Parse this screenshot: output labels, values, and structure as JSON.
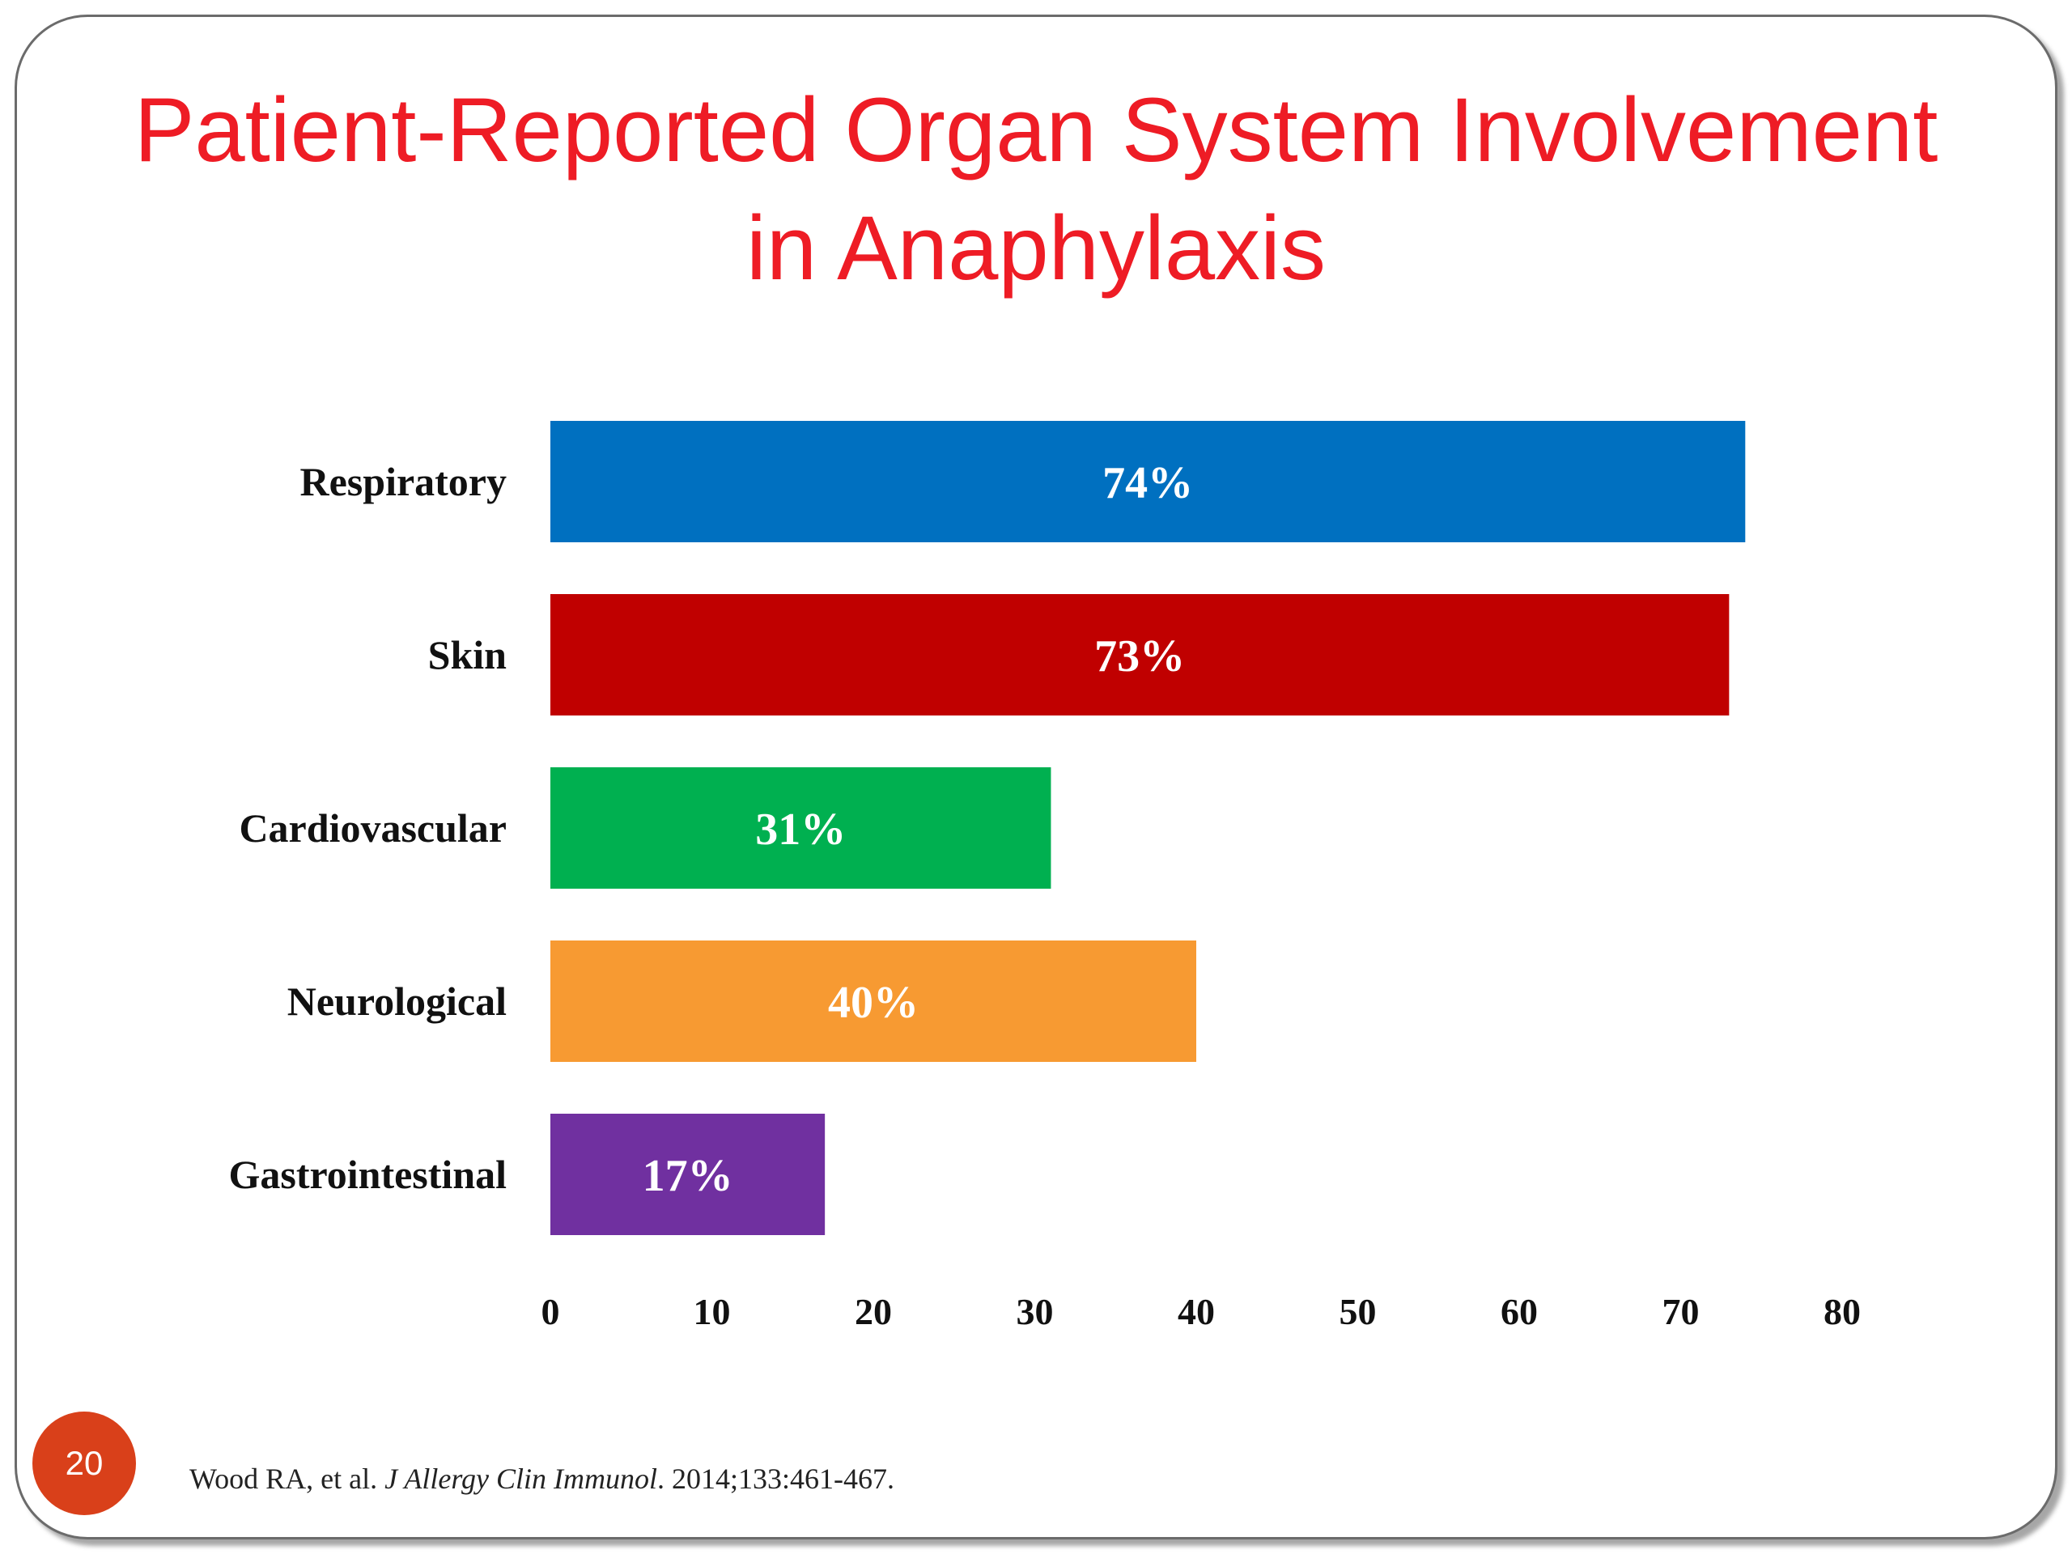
{
  "slide": {
    "title_line1": "Patient-Reported Organ System Involvement",
    "title_line2": "in Anaphylaxis",
    "number": "20",
    "citation": {
      "authors": "Wood RA, et al.",
      "journal": "J Allergy Clin Immunol",
      "details": ". 2014;133:461-467."
    }
  },
  "chart_data": {
    "type": "bar",
    "orientation": "horizontal",
    "categories": [
      "Respiratory",
      "Skin",
      "Cardiovascular",
      "Neurological",
      "Gastrointestinal"
    ],
    "values": [
      74,
      73,
      31,
      40,
      17
    ],
    "data_labels": [
      "74%",
      "73%",
      "31%",
      "40%",
      "17%"
    ],
    "colors": [
      "#0070c0",
      "#c00000",
      "#00b050",
      "#f79a32",
      "#7030a0"
    ],
    "xlim": [
      0,
      80
    ],
    "xticks": [
      0,
      10,
      20,
      30,
      40,
      50,
      60,
      70,
      80
    ],
    "grid": false,
    "legend": "none",
    "title": "",
    "xlabel": "",
    "ylabel": ""
  }
}
